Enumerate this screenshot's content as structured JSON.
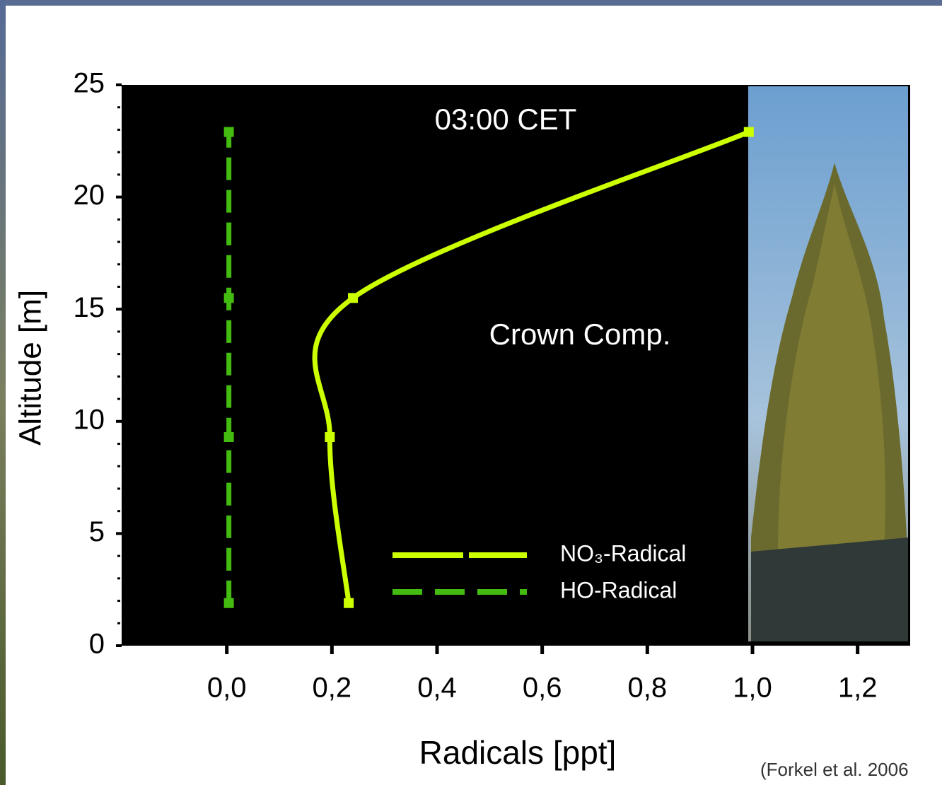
{
  "chart_data": {
    "type": "line",
    "xlabel": "Radicals [ppt]",
    "ylabel": "Altitude [m]",
    "annotations": [
      "03:00 CET",
      "Crown Comp.",
      "(Forkel et al. 2006"
    ],
    "xlim": [
      -0.2,
      1.3
    ],
    "ylim": [
      0,
      25
    ],
    "xticks": [
      {
        "value": 0,
        "label": "0,0"
      },
      {
        "value": 0.2,
        "label": "0,2"
      },
      {
        "value": 0.4,
        "label": "0,4"
      },
      {
        "value": 0.6,
        "label": "0,6"
      },
      {
        "value": 0.8,
        "label": "0,8"
      },
      {
        "value": 1.0,
        "label": "1,0"
      },
      {
        "value": 1.2,
        "label": "1,2"
      }
    ],
    "yticks": [
      0,
      5,
      10,
      15,
      20,
      25
    ],
    "series": [
      {
        "name": "NO₃-Radical",
        "color": "#ccff00",
        "x": [
          0.232,
          0.196,
          0.24,
          0.993
        ],
        "values": [
          1.9,
          9.3,
          15.5,
          22.9
        ]
      },
      {
        "name": "HO-Radical",
        "color": "#44bb11",
        "x": [
          0.004,
          0.004,
          0.004,
          0.004
        ],
        "values": [
          1.9,
          9.3,
          15.5,
          22.9
        ]
      }
    ]
  }
}
